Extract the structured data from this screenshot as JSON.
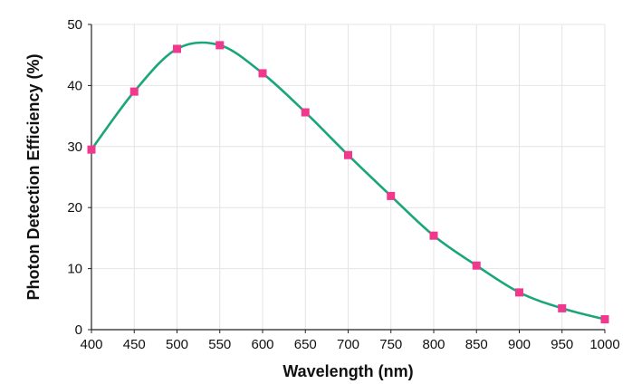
{
  "chart_data": {
    "type": "line",
    "title": "",
    "xlabel": "Wavelength (nm)",
    "ylabel": "Photon Detection Efficiency (%)",
    "xlim": [
      400,
      1000
    ],
    "ylim": [
      0,
      50
    ],
    "x_ticks": [
      400,
      450,
      500,
      550,
      600,
      650,
      700,
      750,
      800,
      850,
      900,
      950,
      1000
    ],
    "y_ticks": [
      0,
      10,
      20,
      30,
      40,
      50
    ],
    "grid": true,
    "legend": "none",
    "series": [
      {
        "x": [
          400,
          450,
          500,
          550,
          600,
          650,
          700,
          750,
          800,
          850,
          900,
          950,
          1000
        ],
        "y": [
          29.5,
          39.0,
          46.0,
          46.6,
          42.0,
          35.6,
          28.6,
          21.9,
          15.4,
          10.5,
          6.1,
          3.5,
          1.7
        ],
        "line_color": "#1aa67a",
        "marker_color": "#f0388f",
        "marker": "square"
      }
    ]
  }
}
